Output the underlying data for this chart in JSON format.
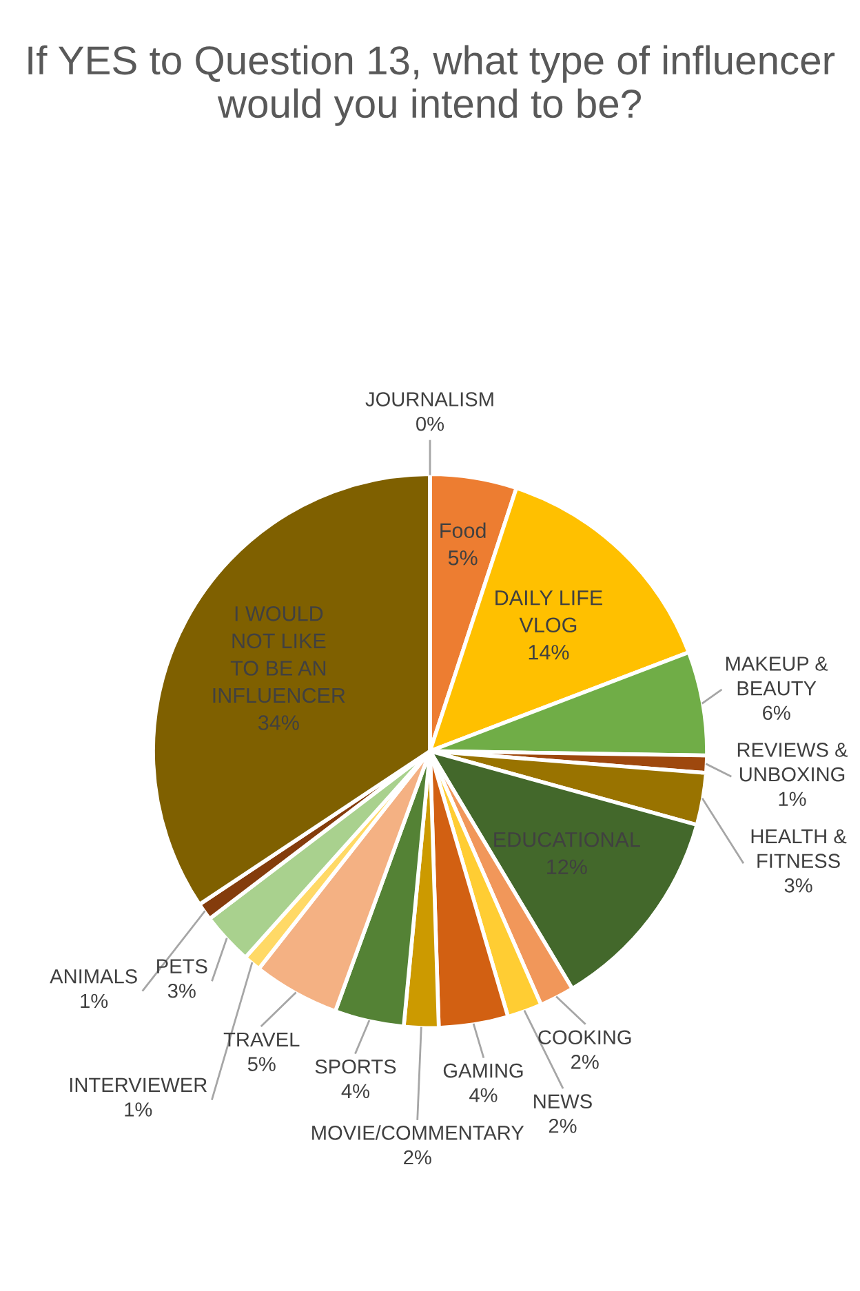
{
  "chart_data": {
    "type": "pie",
    "title": "If YES to Question 13, what type of influencer would you intend to be?",
    "categories": [
      "Food",
      "DAILY LIFE VLOG",
      "MAKEUP & BEAUTY",
      "REVIEWS & UNBOXING",
      "HEALTH & FITNESS",
      "EDUCATIONAL",
      "COOKING",
      "NEWS",
      "GAMING",
      "MOVIE/COMMENTARY",
      "SPORTS",
      "TRAVEL",
      "INTERVIEWER",
      "PETS",
      "ANIMALS",
      "I WOULD NOT LIKE TO BE AN INFLUENCER",
      "JOURNALISM"
    ],
    "values": [
      5,
      14,
      6,
      1,
      3,
      12,
      2,
      2,
      4,
      2,
      4,
      5,
      1,
      3,
      1,
      34,
      0
    ],
    "colors": [
      "#ed7d31",
      "#ffc000",
      "#70ad47",
      "#9e480e",
      "#997300",
      "#43682b",
      "#f1975a",
      "#ffcd33",
      "#d26012",
      "#cc9a00",
      "#548235",
      "#f4b183",
      "#ffd966",
      "#a9d18e",
      "#843c0c",
      "#7f6000",
      "#264478"
    ],
    "value_labels": [
      "5%",
      "14%",
      "6%",
      "1%",
      "3%",
      "12%",
      "2%",
      "2%",
      "4%",
      "2%",
      "4%",
      "5%",
      "1%",
      "3%",
      "1%",
      "34%",
      "0%"
    ]
  }
}
